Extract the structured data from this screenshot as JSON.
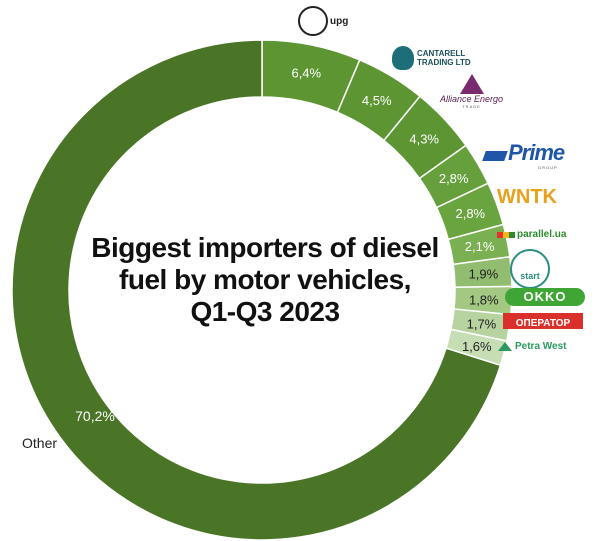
{
  "chart_data": {
    "type": "pie",
    "title": "Biggest importers of diesel fuel by motor vehicles, Q1-Q3 2023",
    "categories": [
      "upg",
      "Cantarell Trading LTD",
      "Alliance Energo Trade",
      "Prime Group",
      "WNTK",
      "parallel.ua",
      "start",
      "OKKO",
      "Оператор",
      "Petra West",
      "Other"
    ],
    "values": [
      6.4,
      4.5,
      4.3,
      2.8,
      2.8,
      2.1,
      1.9,
      1.8,
      1.7,
      1.6,
      70.2
    ],
    "value_labels": [
      "6,4%",
      "4,5%",
      "4,3%",
      "2,8%",
      "2,8%",
      "2,1%",
      "1,9%",
      "1,8%",
      "1,7%",
      "1,6%",
      "70,2%"
    ],
    "other_label": "Other",
    "colors": [
      "#5d9532",
      "#5d9532",
      "#5d9532",
      "#66a03c",
      "#6aa43f",
      "#7aaf52",
      "#92bd70",
      "#a3c882",
      "#b7d4a0",
      "#c7ddb4",
      "#4a7527"
    ]
  },
  "title_lines": [
    "Biggest importers of diesel",
    "fuel by motor vehicles,",
    "Q1-Q3 2023"
  ],
  "logos": {
    "upg": "upg",
    "cantarell_1": "CANTARELL",
    "cantarell_2": "TRADING LTD",
    "alliance": "Alliance Energo",
    "alliance_sub": "TRADE",
    "prime": "Prime",
    "prime_sub": "GROUP",
    "wntk": "WNTK",
    "parallel": "parallel.ua",
    "start": "start",
    "okko": "OKKO",
    "operator": "ОПЕРАТОР",
    "petra": "Petra West"
  }
}
